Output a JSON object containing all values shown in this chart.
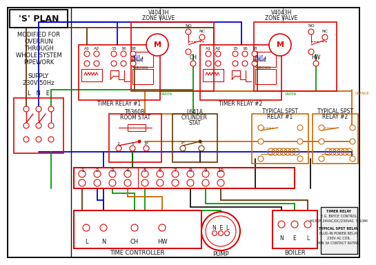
{
  "bg_color": "#ffffff",
  "red": "#dd0000",
  "blue": "#0000cc",
  "green": "#009900",
  "orange": "#cc6600",
  "brown": "#663300",
  "black": "#111111",
  "grey": "#888888",
  "dkgrey": "#444444",
  "info_box": [
    "TIMER RELAY",
    "E.G. BRYCE CONTROL",
    "M1EDF 24VAC/DC/230VAC  5-10MI",
    "",
    "TYPICAL SPST RELAY",
    "PLUG-IN POWER RELAY",
    "230V AC COIL",
    "MIN 3A CONTACT RATING"
  ]
}
